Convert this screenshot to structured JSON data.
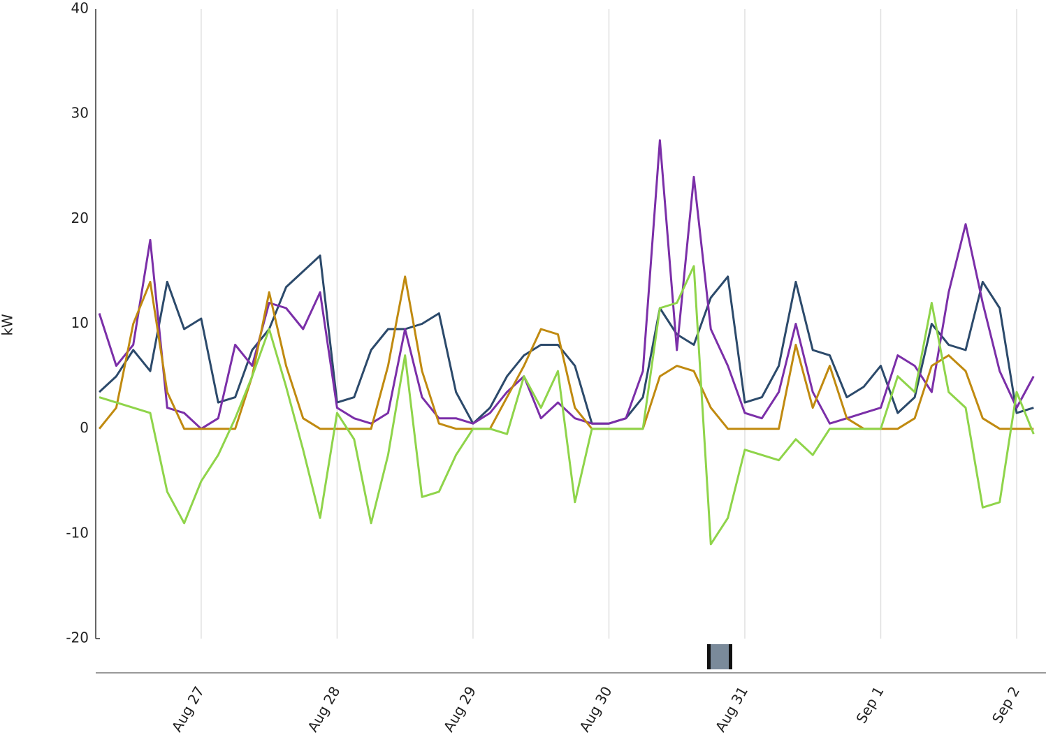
{
  "chart_data": {
    "type": "line",
    "ylabel": "kW",
    "x": [
      -0.75,
      -0.625,
      -0.5,
      -0.375,
      -0.25,
      -0.125,
      0,
      0.125,
      0.25,
      0.375,
      0.5,
      0.625,
      0.75,
      0.875,
      1,
      1.125,
      1.25,
      1.375,
      1.5,
      1.625,
      1.75,
      1.875,
      2,
      2.125,
      2.25,
      2.375,
      2.5,
      2.625,
      2.75,
      2.875,
      3,
      3.125,
      3.25,
      3.375,
      3.5,
      3.625,
      3.75,
      3.875,
      4,
      4.125,
      4.25,
      4.375,
      4.5,
      4.625,
      4.75,
      4.875,
      5,
      5.125,
      5.25,
      5.375,
      5.5,
      5.625,
      5.75,
      5.875,
      6,
      6.125
    ],
    "xlim": [
      -0.776,
      6.216
    ],
    "xticks": [
      {
        "value": 0,
        "label": "Aug 27"
      },
      {
        "value": 1,
        "label": "Aug 28"
      },
      {
        "value": 2,
        "label": "Aug 29"
      },
      {
        "value": 3,
        "label": "Aug 30"
      },
      {
        "value": 4,
        "label": "Aug 31"
      },
      {
        "value": 5,
        "label": "Sep 1"
      },
      {
        "value": 6,
        "label": "Sep 2"
      }
    ],
    "ylim": [
      -20,
      40
    ],
    "yticks": [
      -20,
      -10,
      0,
      10,
      20,
      30,
      40
    ],
    "grid": true,
    "series": [
      {
        "color": "#2c4a6b",
        "values": [
          3.5,
          5,
          7.5,
          5.5,
          14,
          9.5,
          10.5,
          2.5,
          3,
          7.5,
          9.5,
          13.5,
          15,
          16.5,
          2.5,
          3,
          7.5,
          9.5,
          9.5,
          10,
          11,
          3.5,
          0.5,
          2,
          5,
          7,
          8,
          8,
          6,
          0.5,
          0.5,
          1,
          3,
          11.5,
          9,
          8,
          12.5,
          14.5,
          2.5,
          3,
          6,
          14,
          7.5,
          7,
          3,
          4,
          6,
          1.5,
          3,
          10,
          8,
          7.5,
          14,
          11.5,
          1.5,
          2
        ]
      },
      {
        "color": "#7b2fa8",
        "values": [
          11,
          6,
          8,
          18,
          2,
          1.5,
          0,
          1,
          8,
          6,
          12,
          11.5,
          9.5,
          13,
          2,
          1,
          0.5,
          1.5,
          9.5,
          3,
          1,
          1,
          0.5,
          1.5,
          3.5,
          5,
          1,
          2.5,
          1,
          0.5,
          0.5,
          1,
          5.5,
          27.5,
          7.5,
          24,
          9.5,
          6,
          1.5,
          1,
          3.5,
          10,
          3.5,
          0.5,
          1,
          1.5,
          2,
          7,
          6,
          3.5,
          13,
          19.5,
          12,
          5.5,
          2,
          5
        ]
      },
      {
        "color": "#c08a10",
        "values": [
          0,
          2,
          10,
          14,
          3.5,
          0,
          0,
          0,
          0,
          5,
          13,
          6,
          1,
          0,
          0,
          0,
          0,
          6,
          14.5,
          5.5,
          0.5,
          0,
          0,
          0,
          3,
          6,
          9.5,
          9,
          2,
          0,
          0,
          0,
          0,
          5,
          6,
          5.5,
          2,
          0,
          0,
          0,
          0,
          8,
          2,
          6,
          1,
          0,
          0,
          0,
          1,
          6,
          7,
          5.5,
          1,
          0,
          0,
          0
        ]
      },
      {
        "color": "#8fd44a",
        "values": [
          3,
          2.5,
          2,
          1.5,
          -6,
          -9,
          -5,
          -2.5,
          1,
          5,
          9.5,
          4,
          -2,
          -8.5,
          1.5,
          -1,
          -9,
          -2.5,
          7,
          -6.5,
          -6,
          -2.5,
          0,
          0,
          -0.5,
          5,
          2,
          5.5,
          -7,
          0,
          0,
          0,
          0,
          11.5,
          12,
          15.5,
          -11,
          -8.5,
          -2,
          -2.5,
          -3,
          -1,
          -2.5,
          0,
          0,
          0,
          0,
          5,
          3.5,
          12,
          3.5,
          2,
          -7.5,
          -7,
          3.5,
          -0.5
        ]
      }
    ]
  }
}
